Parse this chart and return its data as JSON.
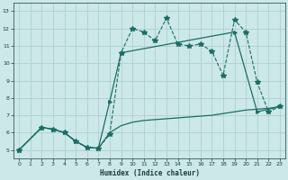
{
  "bg_color": "#cce8e8",
  "line_color": "#1a6e64",
  "grid_color": "#a8cccc",
  "xlabel": "Humidex (Indice chaleur)",
  "xlim": [
    -0.5,
    23.5
  ],
  "ylim": [
    4.5,
    13.5
  ],
  "xticks": [
    0,
    1,
    2,
    3,
    4,
    5,
    6,
    7,
    8,
    9,
    10,
    11,
    12,
    13,
    14,
    15,
    16,
    17,
    18,
    19,
    20,
    21,
    22,
    23
  ],
  "yticks": [
    5,
    6,
    7,
    8,
    9,
    10,
    11,
    12,
    13
  ],
  "line1_x": [
    0,
    2,
    3,
    4,
    5,
    6,
    7,
    8,
    9,
    10,
    11,
    12,
    13,
    14,
    15,
    16,
    17,
    18,
    19,
    20,
    21,
    22,
    23
  ],
  "line1_y": [
    5.0,
    6.3,
    6.2,
    6.0,
    5.5,
    5.15,
    5.1,
    5.9,
    10.6,
    12.0,
    11.8,
    11.3,
    12.6,
    11.1,
    11.0,
    11.1,
    10.7,
    9.3,
    12.5,
    11.8,
    8.9,
    7.2,
    7.5
  ],
  "line2_x": [
    0,
    2,
    3,
    4,
    5,
    6,
    7,
    8,
    9,
    19,
    21,
    23
  ],
  "line2_y": [
    5.0,
    6.3,
    6.2,
    6.0,
    5.5,
    5.15,
    5.1,
    7.8,
    10.6,
    11.8,
    7.2,
    7.5
  ],
  "line3_x": [
    0,
    2,
    3,
    4,
    5,
    6,
    7,
    8,
    9,
    10,
    11,
    12,
    13,
    14,
    15,
    16,
    17,
    18,
    19,
    20,
    21,
    22,
    23
  ],
  "line3_y": [
    5.0,
    6.3,
    6.2,
    6.0,
    5.5,
    5.15,
    5.1,
    6.0,
    6.4,
    6.6,
    6.7,
    6.75,
    6.8,
    6.85,
    6.9,
    6.95,
    7.0,
    7.1,
    7.2,
    7.3,
    7.35,
    7.4,
    7.5
  ]
}
